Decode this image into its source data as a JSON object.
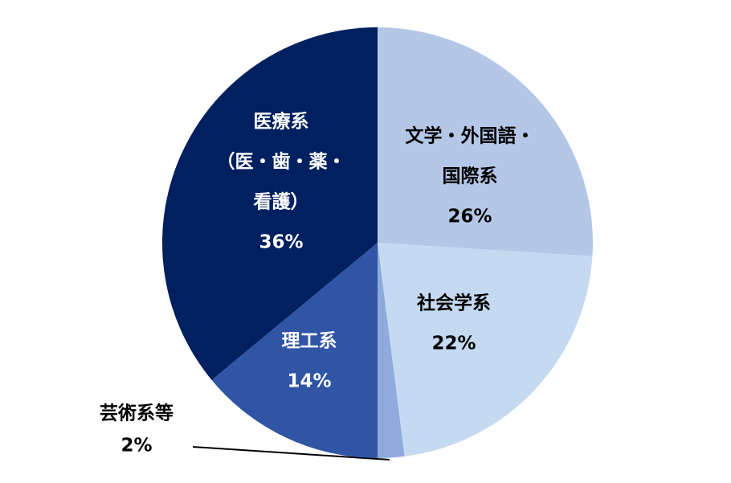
{
  "chart_data": {
    "type": "pie",
    "categories": [
      [
        "文学・外国語・",
        "国際系"
      ],
      [
        "社会学系"
      ],
      [
        "芸術系等"
      ],
      [
        "理工系"
      ],
      [
        "医療系",
        "（医・歯・薬・",
        "看護）"
      ]
    ],
    "values": [
      26,
      22,
      2,
      14,
      36
    ],
    "value_labels": [
      "26%",
      "22%",
      "2%",
      "14%",
      "36%"
    ],
    "colors": [
      "#b4c7e7",
      "#c5d9f1",
      "#8faadc",
      "#2f55a4",
      "#002060"
    ]
  }
}
